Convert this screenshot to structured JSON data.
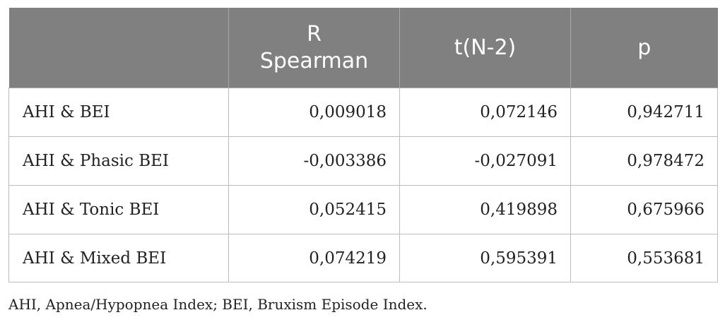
{
  "table": {
    "headers": [
      {
        "line1": "",
        "line2": ""
      },
      {
        "line1": "R",
        "line2": "Spearman"
      },
      {
        "line1": "t(N-2)",
        "line2": ""
      },
      {
        "line1": "p",
        "line2": ""
      }
    ],
    "rows": [
      {
        "label": "AHI & BEI",
        "r": "0,009018",
        "t": "0,072146",
        "p": "0,942711"
      },
      {
        "label": "AHI & Phasic BEI",
        "r": "-0,003386",
        "t": "-0,027091",
        "p": "0,978472"
      },
      {
        "label": "AHI & Tonic BEI",
        "r": "0,052415",
        "t": "0,419898",
        "p": "0,675966"
      },
      {
        "label": "AHI & Mixed BEI",
        "r": "0,074219",
        "t": "0,595391",
        "p": "0,553681"
      }
    ]
  },
  "footnote": "AHI, Apnea/Hypopnea Index; BEI, Bruxism Episode Index.",
  "colors": {
    "header_bg": "#808080",
    "header_text": "#ffffff",
    "border": "#bdbdbd",
    "text": "#222222"
  }
}
